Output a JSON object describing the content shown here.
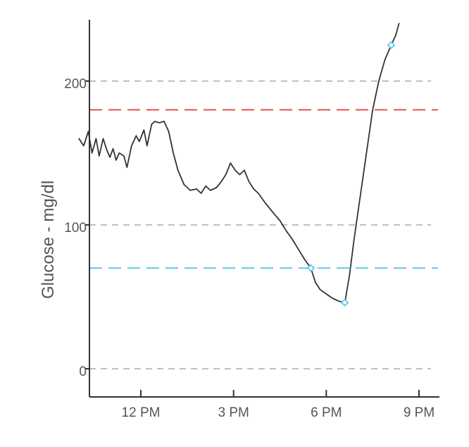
{
  "chart_data": {
    "type": "line",
    "title": "",
    "xlabel": "",
    "ylabel": "Glucose - mg/dl",
    "ylim": [
      -7,
      240
    ],
    "xlim": [
      10.0,
      21.2
    ],
    "x_unit": "hour of day",
    "grid": "dashed horizontal lines at 0, 100, 200",
    "y_ticks": [
      {
        "value": 0,
        "label": "0"
      },
      {
        "value": 100,
        "label": "100"
      },
      {
        "value": 200,
        "label": "200"
      }
    ],
    "x_ticks": [
      {
        "value": 12,
        "label": "12 PM"
      },
      {
        "value": 15,
        "label": "3 PM"
      },
      {
        "value": 18,
        "label": "6 PM"
      },
      {
        "value": 21,
        "label": "9 PM"
      }
    ],
    "thresholds": [
      {
        "value": 180,
        "color": "#e8524a"
      },
      {
        "value": 70,
        "color": "#5cc8ee"
      }
    ],
    "series": [
      {
        "color": "#333333",
        "points": [
          [
            10.0,
            160
          ],
          [
            10.15,
            155
          ],
          [
            10.3,
            165
          ],
          [
            10.42,
            150
          ],
          [
            10.55,
            160
          ],
          [
            10.65,
            148
          ],
          [
            10.78,
            160
          ],
          [
            10.9,
            152
          ],
          [
            11.0,
            147
          ],
          [
            11.1,
            153
          ],
          [
            11.2,
            145
          ],
          [
            11.3,
            150
          ],
          [
            11.45,
            148
          ],
          [
            11.55,
            140
          ],
          [
            11.7,
            155
          ],
          [
            11.85,
            162
          ],
          [
            11.95,
            158
          ],
          [
            12.1,
            166
          ],
          [
            12.2,
            155
          ],
          [
            12.35,
            170
          ],
          [
            12.45,
            172
          ],
          [
            12.6,
            171
          ],
          [
            12.75,
            172
          ],
          [
            12.9,
            165
          ],
          [
            13.05,
            150
          ],
          [
            13.2,
            138
          ],
          [
            13.4,
            128
          ],
          [
            13.6,
            124
          ],
          [
            13.8,
            125
          ],
          [
            13.95,
            122
          ],
          [
            14.1,
            127
          ],
          [
            14.25,
            124
          ],
          [
            14.45,
            126
          ],
          [
            14.6,
            130
          ],
          [
            14.75,
            135
          ],
          [
            14.9,
            143
          ],
          [
            15.05,
            138
          ],
          [
            15.2,
            135
          ],
          [
            15.35,
            138
          ],
          [
            15.5,
            130
          ],
          [
            15.65,
            125
          ],
          [
            15.8,
            122
          ],
          [
            16.0,
            116
          ],
          [
            16.15,
            112
          ],
          [
            16.3,
            108
          ],
          [
            16.5,
            103
          ],
          [
            16.7,
            96
          ],
          [
            16.9,
            90
          ],
          [
            17.1,
            83
          ],
          [
            17.3,
            76
          ],
          [
            17.5,
            70
          ],
          [
            17.65,
            60
          ],
          [
            17.8,
            55
          ],
          [
            18.0,
            52
          ],
          [
            18.2,
            49
          ],
          [
            18.4,
            47
          ],
          [
            18.6,
            46
          ],
          [
            18.75,
            65
          ],
          [
            18.9,
            90
          ],
          [
            19.1,
            120
          ],
          [
            19.3,
            150
          ],
          [
            19.5,
            180
          ],
          [
            19.7,
            200
          ],
          [
            19.9,
            215
          ],
          [
            20.1,
            225
          ],
          [
            20.25,
            232
          ],
          [
            20.35,
            240
          ]
        ],
        "markers": [
          {
            "x": 17.5,
            "y": 70,
            "color": "#5cc8ee"
          },
          {
            "x": 18.6,
            "y": 46,
            "color": "#5cc8ee"
          },
          {
            "x": 20.1,
            "y": 225,
            "color": "#5cc8ee"
          }
        ]
      }
    ]
  }
}
